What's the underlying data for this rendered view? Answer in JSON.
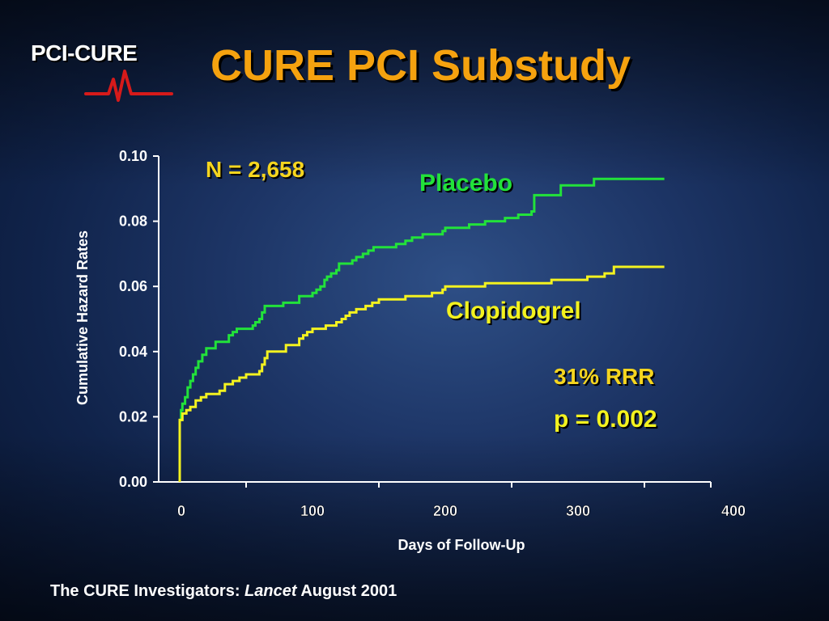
{
  "title": "CURE PCI Substudy",
  "logo": {
    "pci": "PCI-",
    "cure": "CURE"
  },
  "annotations": {
    "n": "N = 2,658",
    "placebo": "Placebo",
    "clopidogrel": "Clopidogrel",
    "rrr": "31% RRR",
    "p": "p = 0.002"
  },
  "citation": {
    "prefix": "The CURE Investigators: ",
    "journal": "Lancet",
    "suffix": " August 2001"
  },
  "colors": {
    "title": "#f5a20f",
    "placebo": "#22e23a",
    "clopidogrel": "#f3f21f",
    "annotation": "#f5d51f"
  },
  "chart_data": {
    "type": "line",
    "step": true,
    "xlabel": "Days of Follow-Up",
    "ylabel": "Cumulative Hazard Rates",
    "xlim": [
      0,
      400
    ],
    "ylim": [
      0,
      0.1
    ],
    "xticks": [
      0,
      100,
      200,
      300,
      400
    ],
    "yticks": [
      "0.00",
      "0.02",
      "0.04",
      "0.06",
      "0.08",
      "0.10"
    ],
    "grid": false,
    "series": [
      {
        "name": "Placebo",
        "color": "#22e23a",
        "points": [
          [
            0,
            0
          ],
          [
            0,
            0.019
          ],
          [
            1,
            0.022
          ],
          [
            2,
            0.024
          ],
          [
            4,
            0.026
          ],
          [
            6,
            0.029
          ],
          [
            8,
            0.031
          ],
          [
            10,
            0.033
          ],
          [
            12,
            0.035
          ],
          [
            14,
            0.037
          ],
          [
            17,
            0.039
          ],
          [
            20,
            0.041
          ],
          [
            25,
            0.041
          ],
          [
            27,
            0.043
          ],
          [
            33,
            0.043
          ],
          [
            37,
            0.045
          ],
          [
            40,
            0.046
          ],
          [
            43,
            0.047
          ],
          [
            50,
            0.047
          ],
          [
            55,
            0.048
          ],
          [
            57,
            0.049
          ],
          [
            60,
            0.05
          ],
          [
            62,
            0.052
          ],
          [
            64,
            0.054
          ],
          [
            70,
            0.054
          ],
          [
            77,
            0.054
          ],
          [
            78,
            0.055
          ],
          [
            88,
            0.055
          ],
          [
            90,
            0.057
          ],
          [
            98,
            0.057
          ],
          [
            100,
            0.058
          ],
          [
            103,
            0.059
          ],
          [
            106,
            0.06
          ],
          [
            109,
            0.062
          ],
          [
            111,
            0.063
          ],
          [
            114,
            0.064
          ],
          [
            118,
            0.065
          ],
          [
            120,
            0.067
          ],
          [
            128,
            0.067
          ],
          [
            130,
            0.068
          ],
          [
            133,
            0.069
          ],
          [
            138,
            0.07
          ],
          [
            142,
            0.071
          ],
          [
            146,
            0.072
          ],
          [
            160,
            0.072
          ],
          [
            163,
            0.073
          ],
          [
            170,
            0.074
          ],
          [
            175,
            0.075
          ],
          [
            183,
            0.076
          ],
          [
            198,
            0.077
          ],
          [
            200,
            0.078
          ],
          [
            215,
            0.078
          ],
          [
            218,
            0.079
          ],
          [
            230,
            0.08
          ],
          [
            245,
            0.081
          ],
          [
            255,
            0.082
          ],
          [
            265,
            0.083
          ],
          [
            267,
            0.088
          ],
          [
            285,
            0.088
          ],
          [
            287,
            0.091
          ],
          [
            310,
            0.091
          ],
          [
            312,
            0.093
          ],
          [
            365,
            0.093
          ]
        ]
      },
      {
        "name": "Clopidogrel",
        "color": "#f3f21f",
        "points": [
          [
            0,
            0
          ],
          [
            0,
            0.019
          ],
          [
            2,
            0.021
          ],
          [
            5,
            0.022
          ],
          [
            8,
            0.023
          ],
          [
            12,
            0.025
          ],
          [
            16,
            0.026
          ],
          [
            20,
            0.027
          ],
          [
            28,
            0.027
          ],
          [
            30,
            0.028
          ],
          [
            33,
            0.028
          ],
          [
            34,
            0.03
          ],
          [
            40,
            0.031
          ],
          [
            45,
            0.032
          ],
          [
            50,
            0.033
          ],
          [
            58,
            0.033
          ],
          [
            60,
            0.034
          ],
          [
            62,
            0.036
          ],
          [
            64,
            0.038
          ],
          [
            66,
            0.04
          ],
          [
            78,
            0.04
          ],
          [
            80,
            0.042
          ],
          [
            88,
            0.042
          ],
          [
            90,
            0.044
          ],
          [
            93,
            0.045
          ],
          [
            96,
            0.046
          ],
          [
            100,
            0.047
          ],
          [
            108,
            0.047
          ],
          [
            110,
            0.048
          ],
          [
            115,
            0.048
          ],
          [
            118,
            0.049
          ],
          [
            122,
            0.05
          ],
          [
            125,
            0.051
          ],
          [
            128,
            0.052
          ],
          [
            133,
            0.053
          ],
          [
            140,
            0.054
          ],
          [
            145,
            0.055
          ],
          [
            150,
            0.056
          ],
          [
            168,
            0.056
          ],
          [
            170,
            0.057
          ],
          [
            180,
            0.057
          ],
          [
            190,
            0.058
          ],
          [
            198,
            0.059
          ],
          [
            200,
            0.06
          ],
          [
            225,
            0.06
          ],
          [
            230,
            0.061
          ],
          [
            245,
            0.061
          ],
          [
            250,
            0.061
          ],
          [
            278,
            0.061
          ],
          [
            280,
            0.062
          ],
          [
            305,
            0.062
          ],
          [
            307,
            0.063
          ],
          [
            320,
            0.064
          ],
          [
            327,
            0.066
          ],
          [
            365,
            0.066
          ]
        ]
      }
    ]
  }
}
